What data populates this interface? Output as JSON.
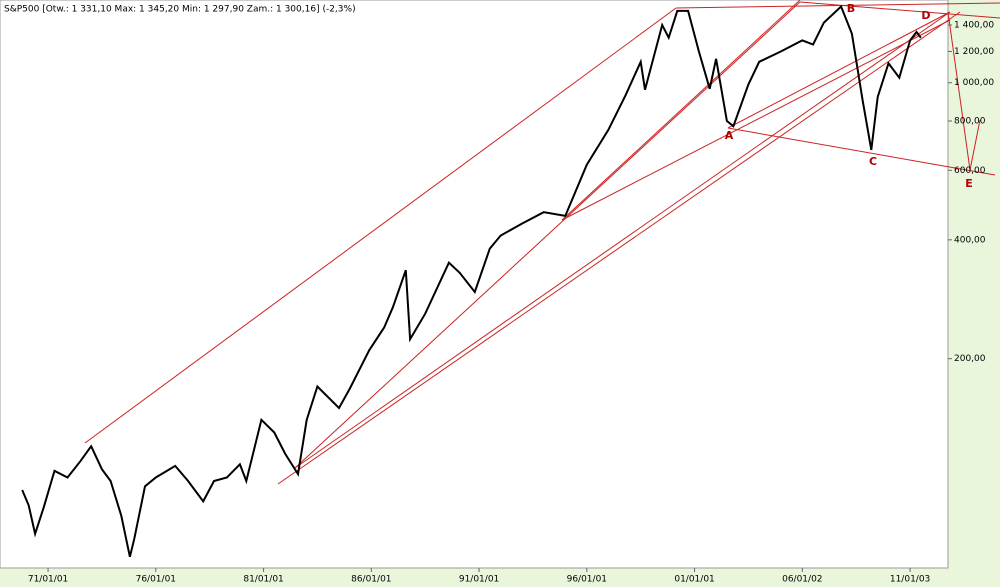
{
  "chart_data": {
    "type": "line",
    "title": "S&P500 [Otw.: 1 331,10  Max: 1 345,20  Min: 1 297,90  Zam.: 1 300,16] (-2,3%)",
    "log_y": true,
    "grid": false,
    "xlim": [
      1968.77,
      2012.76
    ],
    "ylim": [
      59,
      1620
    ],
    "xticks": [
      {
        "value": 1971,
        "label": "71/01/01"
      },
      {
        "value": 1976,
        "label": "76/01/01"
      },
      {
        "value": 1981,
        "label": "81/01/01"
      },
      {
        "value": 1986,
        "label": "86/01/01"
      },
      {
        "value": 1991,
        "label": "91/01/01"
      },
      {
        "value": 1996,
        "label": "96/01/01"
      },
      {
        "value": 2001,
        "label": "01/01/01"
      },
      {
        "value": 2006,
        "label": "06/01/02"
      },
      {
        "value": 2011,
        "label": "11/01/03"
      }
    ],
    "yticks": [
      {
        "value": 200,
        "label": "200,00"
      },
      {
        "value": 400,
        "label": "400,00"
      },
      {
        "value": 600,
        "label": "600,00"
      },
      {
        "value": 800,
        "label": "800,00"
      },
      {
        "value": 1000,
        "label": "1 000,00"
      },
      {
        "value": 1200,
        "label": "1 200,00"
      },
      {
        "value": 1400,
        "label": "1 400,00"
      }
    ],
    "annotations": [
      "A",
      "B",
      "C",
      "D",
      "E"
    ],
    "series": [
      {
        "name": "S&P500",
        "color": "#000000",
        "x": [
          1969.8,
          1970.1,
          1970.4,
          1970.8,
          1971.3,
          1971.9,
          1972.5,
          1972.9,
          1973.0,
          1973.5,
          1973.9,
          1974.4,
          1974.8,
          1975.0,
          1975.5,
          1976.0,
          1976.9,
          1977.5,
          1978.2,
          1978.7,
          1979.3,
          1979.9,
          1980.2,
          1980.9,
          1981.5,
          1982.0,
          1982.6,
          1983.0,
          1983.5,
          1984.5,
          1985.0,
          1985.9,
          1986.6,
          1987.0,
          1987.6,
          1987.8,
          1988.5,
          1989.6,
          1990.1,
          1990.8,
          1991.5,
          1992.0,
          1993.0,
          1994.0,
          1995.0,
          1996.0,
          1997.0,
          1997.8,
          1998.5,
          1998.7,
          1999.5,
          1999.8,
          2000.2,
          2000.7,
          2001.2,
          2001.7,
          2002.0,
          2002.5,
          2002.8,
          2003.5,
          2004.0,
          2005.0,
          2006.0,
          2006.5,
          2007.0,
          2007.8,
          2008.3,
          2008.8,
          2009.2,
          2009.5,
          2010.0,
          2010.5,
          2011.0,
          2011.3,
          2011.5
        ],
        "values": [
          93,
          85,
          72,
          84,
          104,
          100,
          110,
          118,
          120,
          105,
          98,
          80,
          63,
          70,
          95,
          100,
          107,
          98,
          87,
          98,
          100,
          108,
          98,
          140,
          130,
          115,
          102,
          140,
          170,
          150,
          168,
          210,
          240,
          270,
          335,
          224,
          260,
          350,
          330,
          295,
          380,
          410,
          440,
          470,
          460,
          620,
          760,
          930,
          1130,
          960,
          1400,
          1300,
          1520,
          1520,
          1200,
          965,
          1150,
          800,
          776,
          990,
          1130,
          1200,
          1280,
          1250,
          1420,
          1560,
          1330,
          900,
          676,
          920,
          1120,
          1030,
          1280,
          1345,
          1300
        ]
      }
    ]
  }
}
